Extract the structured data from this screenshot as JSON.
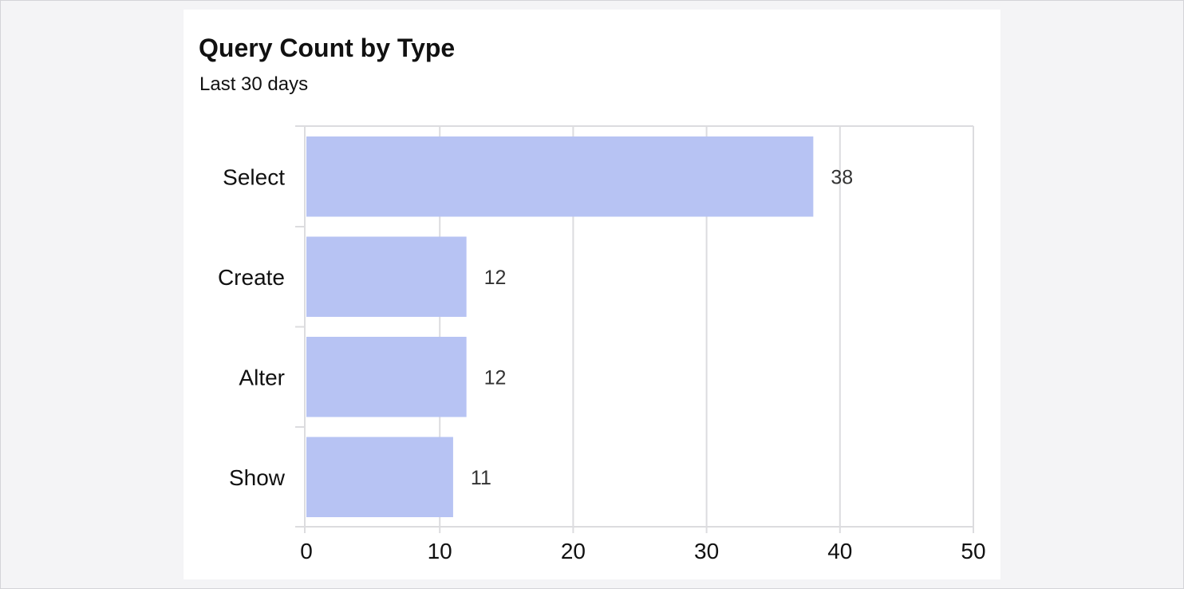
{
  "chart_data": {
    "type": "bar",
    "orientation": "horizontal",
    "title": "Query Count by Type",
    "subtitle": "Last 30 days",
    "categories": [
      "Select",
      "Create",
      "Alter",
      "Show"
    ],
    "values": [
      38,
      12,
      12,
      11
    ],
    "data_labels": [
      "38",
      "12",
      "12",
      "11"
    ],
    "xlim": [
      0,
      50
    ],
    "xticks": [
      0,
      10,
      20,
      30,
      40,
      50
    ],
    "grid": true,
    "legend": "none",
    "bar_color": "#b7c3f3",
    "grid_color": "#dcdcdf"
  }
}
